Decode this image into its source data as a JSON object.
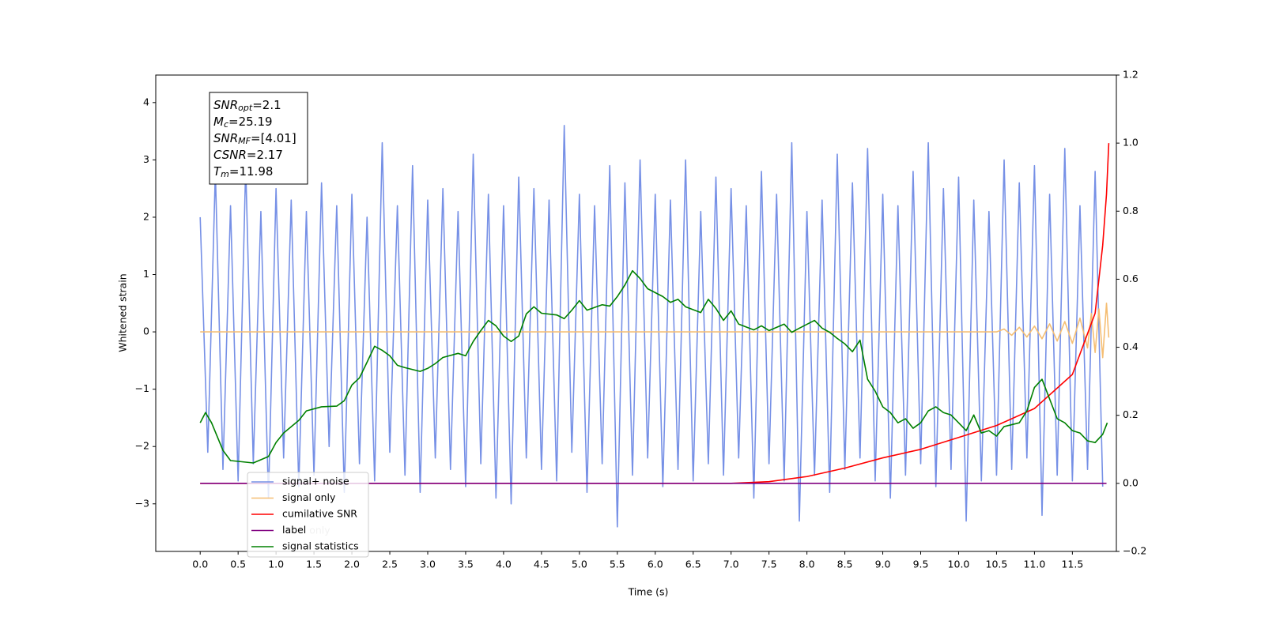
{
  "chart_data": {
    "type": "line",
    "xlabel": "Time (s)",
    "ylabel": "Whitened strain",
    "xlim": [
      -0.586,
      12.08
    ],
    "ylim": [
      -3.83,
      4.48
    ],
    "y2lim": [
      -0.2,
      1.2
    ],
    "xticks": [
      {
        "value": 0,
        "label": "0.0"
      },
      0.5,
      {
        "value": 1,
        "label": "1.0"
      },
      1.5,
      {
        "value": 2,
        "label": "2.0"
      },
      2.5,
      {
        "value": 3,
        "label": "3.0"
      },
      3.5,
      {
        "value": 4,
        "label": "4.0"
      },
      4.5,
      {
        "value": 5,
        "label": "5.0"
      },
      5.5,
      {
        "value": 6,
        "label": "6.0"
      },
      6.5,
      {
        "value": 7,
        "label": "7.0"
      },
      7.5,
      {
        "value": 8,
        "label": "8.0"
      },
      8.5,
      {
        "value": 9,
        "label": "9.0"
      },
      9.5,
      {
        "value": 10,
        "label": "10.0"
      },
      10.5,
      {
        "value": 11,
        "label": "11.0"
      },
      11.5
    ],
    "yticks": [
      {
        "value": -3,
        "label": "−3"
      },
      {
        "value": -2,
        "label": "−2"
      },
      {
        "value": -1,
        "label": "−1"
      },
      0,
      1,
      2,
      3,
      4
    ],
    "y2ticks": [
      {
        "value": -0.2,
        "label": "−0.2"
      },
      {
        "value": 0,
        "label": "0.0"
      },
      0.2,
      0.4,
      0.6,
      0.8,
      {
        "value": 1,
        "label": "1.0"
      },
      1.2
    ],
    "legend": "lower left",
    "annotation": "label only",
    "info_box": [
      {
        "symbol": "SNR",
        "subscript": "opt",
        "text": "=2.1"
      },
      {
        "symbol": "M",
        "subscript": "c",
        "text": "=25.19"
      },
      {
        "symbol": "SNR",
        "subscript": "MF",
        "text": "=[4.01]"
      },
      {
        "symbol": "CSNR",
        "subscript": null,
        "text": "=2.17"
      },
      {
        "symbol": "T",
        "subscript": "m",
        "text": "=11.98"
      }
    ],
    "series": [
      {
        "name": "signal+ noise",
        "color": "#7690e6",
        "x": [
          0,
          0.1,
          0.2,
          0.3,
          0.4,
          0.5,
          0.6,
          0.7,
          0.8,
          0.9,
          1,
          1.1,
          1.2,
          1.3,
          1.4,
          1.5,
          1.6,
          1.7,
          1.8,
          1.9,
          2,
          2.1,
          2.2,
          2.3,
          2.4,
          2.5,
          2.6,
          2.7,
          2.8,
          2.9,
          3,
          3.1,
          3.2,
          3.3,
          3.4,
          3.5,
          3.6,
          3.7,
          3.8,
          3.9,
          4,
          4.1,
          4.2,
          4.3,
          4.4,
          4.5,
          4.6,
          4.7,
          4.8,
          4.9,
          5,
          5.1,
          5.2,
          5.3,
          5.4,
          5.5,
          5.6,
          5.7,
          5.8,
          5.9,
          6,
          6.1,
          6.2,
          6.3,
          6.4,
          6.5,
          6.6,
          6.7,
          6.8,
          6.9,
          7,
          7.1,
          7.2,
          7.3,
          7.4,
          7.5,
          7.6,
          7.7,
          7.8,
          7.9,
          8,
          8.1,
          8.2,
          8.3,
          8.4,
          8.5,
          8.6,
          8.7,
          8.8,
          8.9,
          9,
          9.1,
          9.2,
          9.3,
          9.4,
          9.5,
          9.6,
          9.7,
          9.8,
          9.9,
          10,
          10.1,
          10.2,
          10.3,
          10.4,
          10.5,
          10.6,
          10.7,
          10.8,
          10.9,
          11,
          11.1,
          11.2,
          11.3,
          11.4,
          11.5,
          11.6,
          11.7,
          11.8,
          11.9
        ],
        "values": [
          2.0,
          -2.1,
          2.8,
          -2.4,
          2.2,
          -2.6,
          2.9,
          -2.3,
          2.1,
          -2.9,
          2.5,
          -2.2,
          2.3,
          -2.7,
          2.1,
          -2.5,
          2.6,
          -2.0,
          2.2,
          -2.8,
          2.4,
          -2.3,
          2.0,
          -2.6,
          3.3,
          -2.1,
          2.2,
          -2.5,
          2.9,
          -2.8,
          2.3,
          -2.2,
          2.5,
          -2.4,
          2.1,
          -2.7,
          3.1,
          -2.3,
          2.4,
          -2.9,
          2.2,
          -3.0,
          2.7,
          -2.2,
          2.5,
          -2.4,
          2.3,
          -2.6,
          3.6,
          -2.1,
          2.4,
          -2.8,
          2.2,
          -2.3,
          2.9,
          -3.4,
          2.6,
          -2.5,
          3.0,
          -2.2,
          2.4,
          -2.7,
          2.3,
          -2.4,
          3.0,
          -2.6,
          2.1,
          -2.3,
          2.7,
          -2.5,
          2.5,
          -2.2,
          2.2,
          -2.9,
          2.8,
          -2.3,
          2.4,
          -2.6,
          3.3,
          -3.3,
          2.1,
          -2.5,
          2.3,
          -2.8,
          3.1,
          -2.4,
          2.6,
          -2.2,
          3.2,
          -2.6,
          2.4,
          -2.9,
          2.2,
          -2.5,
          2.8,
          -2.3,
          3.3,
          -2.7,
          2.5,
          -2.4,
          2.7,
          -3.3,
          2.3,
          -2.6,
          2.1,
          -2.5,
          3.0,
          -2.4,
          2.6,
          -2.2,
          2.9,
          -3.2,
          2.4,
          -2.5,
          3.2,
          -2.6,
          2.2,
          -2.4,
          2.8,
          -2.7
        ]
      },
      {
        "name": "signal only",
        "color": "#f5be73",
        "x": [
          0,
          10.5,
          10.6,
          10.7,
          10.8,
          10.9,
          11,
          11.1,
          11.2,
          11.3,
          11.4,
          11.5,
          11.6,
          11.7,
          11.75,
          11.8,
          11.85,
          11.9,
          11.95,
          11.98
        ],
        "values": [
          0,
          0,
          0.05,
          -0.06,
          0.08,
          -0.09,
          0.1,
          -0.12,
          0.14,
          -0.16,
          0.18,
          -0.2,
          0.24,
          -0.28,
          0.32,
          -0.36,
          0.4,
          -0.45,
          0.5,
          -0.1
        ]
      },
      {
        "name": "cumilative SNR",
        "color": "#ff0000",
        "axis": "y2",
        "x": [
          0,
          7,
          7.5,
          8,
          8.5,
          9,
          9.5,
          10,
          10.5,
          11,
          11.5,
          11.8,
          11.9,
          11.95,
          11.98
        ],
        "values": [
          0,
          0,
          0.005,
          0.02,
          0.045,
          0.075,
          0.1,
          0.135,
          0.17,
          0.22,
          0.32,
          0.5,
          0.7,
          0.85,
          1.0
        ]
      },
      {
        "name": "label",
        "color": "#800080",
        "axis": "y2",
        "x": [
          0,
          11.95
        ],
        "values": [
          0,
          0
        ]
      },
      {
        "name": "signal statistics",
        "color": "#008000",
        "axis": "y2",
        "x": [
          0,
          0.07,
          0.15,
          0.3,
          0.4,
          0.7,
          0.9,
          1,
          1.1,
          1.3,
          1.4,
          1.6,
          1.8,
          1.9,
          2,
          2.1,
          2.2,
          2.3,
          2.4,
          2.5,
          2.6,
          2.7,
          2.9,
          3,
          3.1,
          3.2,
          3.4,
          3.5,
          3.6,
          3.7,
          3.8,
          3.9,
          4,
          4.1,
          4.2,
          4.3,
          4.4,
          4.5,
          4.7,
          4.8,
          4.9,
          5,
          5.1,
          5.3,
          5.4,
          5.5,
          5.6,
          5.7,
          5.8,
          5.9,
          6.1,
          6.2,
          6.3,
          6.4,
          6.6,
          6.7,
          6.8,
          6.9,
          7,
          7.1,
          7.3,
          7.4,
          7.5,
          7.7,
          7.8,
          7.9,
          8.1,
          8.2,
          8.3,
          8.4,
          8.5,
          8.6,
          8.7,
          8.8,
          8.9,
          9,
          9.1,
          9.2,
          9.3,
          9.4,
          9.5,
          9.6,
          9.7,
          9.8,
          9.9,
          10.1,
          10.2,
          10.3,
          10.4,
          10.5,
          10.6,
          10.8,
          10.9,
          11,
          11.1,
          11.2,
          11.3,
          11.4,
          11.5,
          11.6,
          11.7,
          11.8,
          11.9,
          11.96
        ],
        "values": [
          0.178,
          0.208,
          0.178,
          0.097,
          0.067,
          0.06,
          0.079,
          0.12,
          0.148,
          0.185,
          0.213,
          0.225,
          0.227,
          0.243,
          0.289,
          0.31,
          0.356,
          0.403,
          0.391,
          0.375,
          0.347,
          0.34,
          0.329,
          0.338,
          0.352,
          0.37,
          0.382,
          0.375,
          0.417,
          0.449,
          0.479,
          0.463,
          0.433,
          0.417,
          0.433,
          0.498,
          0.519,
          0.5,
          0.495,
          0.484,
          0.509,
          0.537,
          0.509,
          0.525,
          0.521,
          0.549,
          0.583,
          0.625,
          0.602,
          0.572,
          0.549,
          0.532,
          0.541,
          0.519,
          0.502,
          0.541,
          0.514,
          0.479,
          0.507,
          0.468,
          0.451,
          0.463,
          0.449,
          0.468,
          0.444,
          0.456,
          0.479,
          0.456,
          0.444,
          0.426,
          0.41,
          0.387,
          0.421,
          0.306,
          0.271,
          0.225,
          0.208,
          0.178,
          0.19,
          0.162,
          0.178,
          0.213,
          0.225,
          0.208,
          0.201,
          0.155,
          0.201,
          0.148,
          0.155,
          0.139,
          0.167,
          0.178,
          0.213,
          0.282,
          0.306,
          0.248,
          0.19,
          0.178,
          0.155,
          0.148,
          0.125,
          0.12,
          0.144,
          0.178
        ]
      }
    ]
  }
}
